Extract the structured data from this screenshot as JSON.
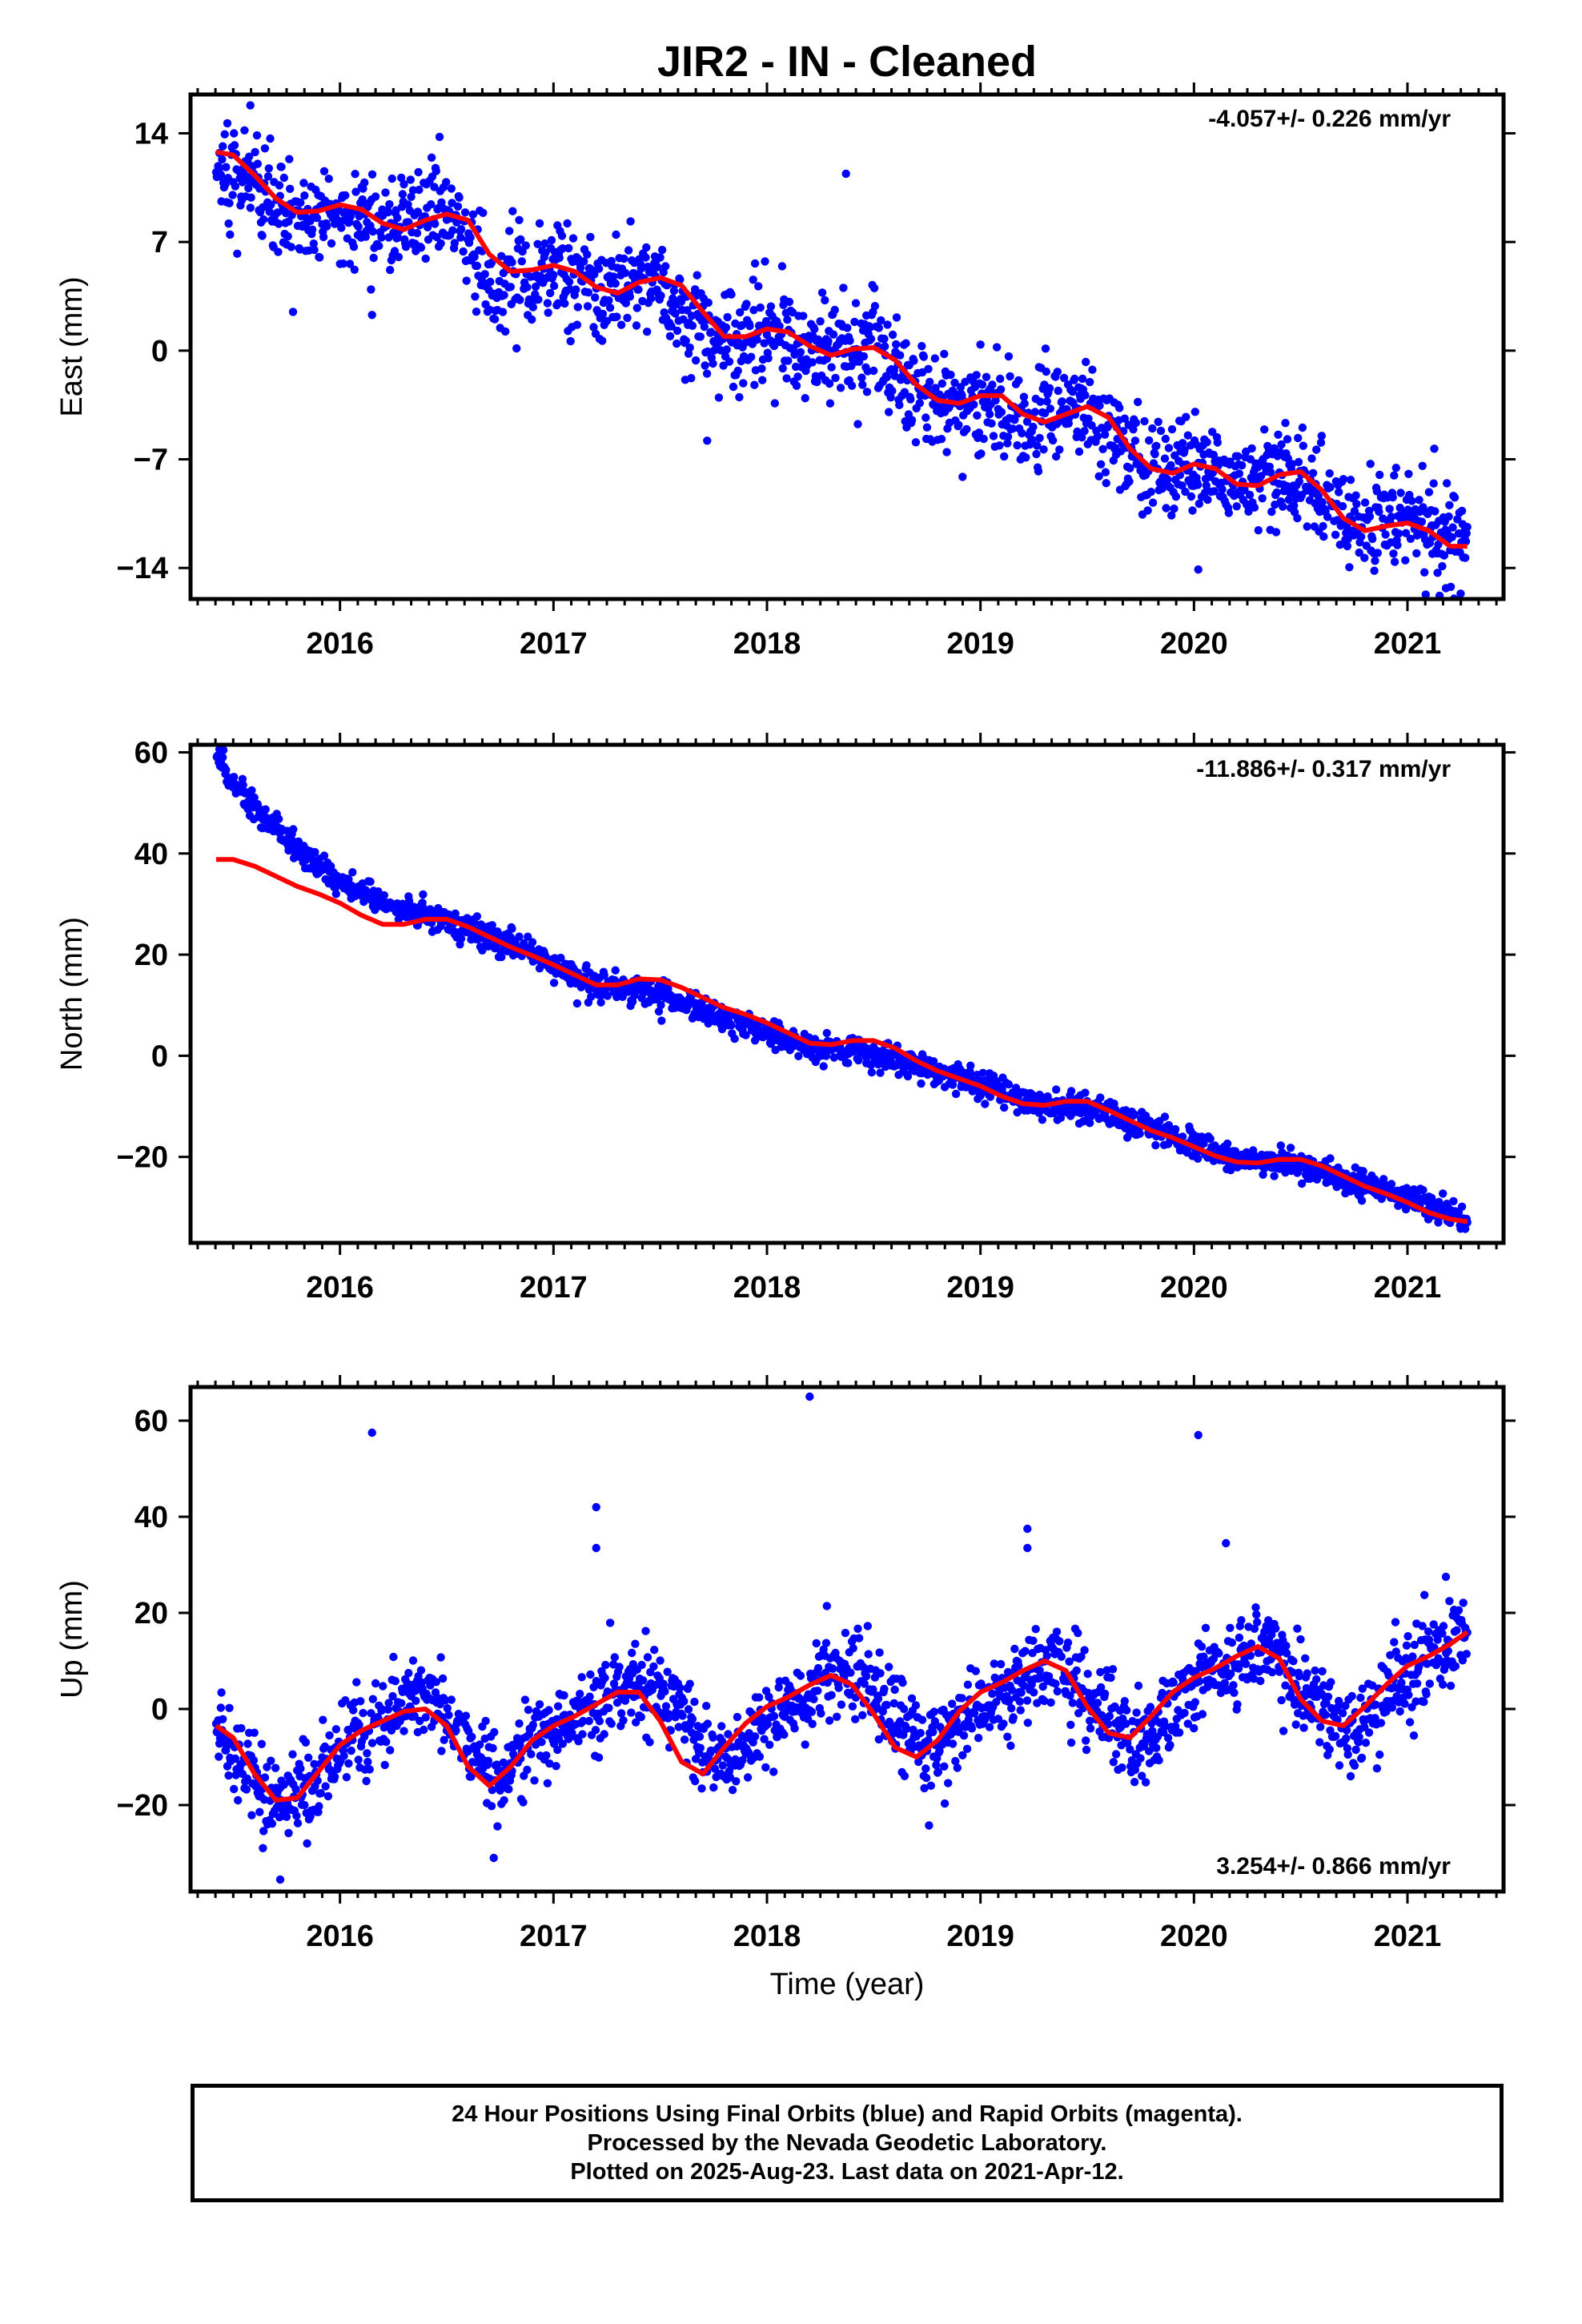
{
  "title": "JIR2  - IN - Cleaned",
  "caption": {
    "line1": "24 Hour Positions Using Final Orbits (blue) and Rapid Orbits (magenta).",
    "line2": "Processed by the Nevada Geodetic Laboratory.",
    "line3": "Plotted on 2025-Aug-23. Last data on 2021-Apr-12."
  },
  "colors": {
    "data": "#0000ff",
    "model": "#ff0000",
    "axes": "#000000"
  },
  "chart_data": [
    {
      "type": "scatter",
      "ylabel": "East (mm)",
      "xlabel": "",
      "xlim": [
        2015.3,
        2021.45
      ],
      "ylim": [
        -16.0,
        16.5
      ],
      "x_ticks": [
        2016,
        2017,
        2018,
        2019,
        2020,
        2021
      ],
      "x_tick_labels": [
        "2016",
        "2017",
        "2018",
        "2019",
        "2020",
        "2021"
      ],
      "y_ticks": [
        14,
        7,
        0,
        -7,
        -14
      ],
      "y_tick_labels": [
        "14",
        "7",
        "0",
        "−7",
        "−14"
      ],
      "rate": "-4.057+/- 0.226 mm/yr",
      "rate_position": "top-right",
      "series": [
        {
          "role": "data",
          "color": "#0000ff",
          "noise": 1.6,
          "trend_x": [
            2015.42,
            2015.55,
            2015.7,
            2015.85,
            2016.0,
            2016.15,
            2016.3,
            2016.45,
            2016.55,
            2016.7,
            2016.85,
            2017.0,
            2017.15,
            2017.3,
            2017.45,
            2017.6,
            2017.75,
            2017.9,
            2018.05,
            2018.2,
            2018.35,
            2018.5,
            2018.65,
            2018.8,
            2018.95,
            2019.1,
            2019.25,
            2019.4,
            2019.55,
            2019.7,
            2019.85,
            2020.0,
            2020.15,
            2020.3,
            2020.45,
            2020.6,
            2020.75,
            2020.9,
            2021.05,
            2021.2,
            2021.28
          ],
          "trend_y": [
            11.5,
            11.5,
            8.5,
            8.3,
            9.0,
            8.0,
            8.3,
            9.2,
            8.0,
            4.5,
            4.6,
            5.2,
            4.0,
            3.6,
            4.6,
            2.5,
            0.9,
            1.1,
            1.4,
            0.0,
            0.2,
            0.3,
            -2.0,
            -3.3,
            -3.0,
            -4.2,
            -4.4,
            -3.6,
            -4.3,
            -7.0,
            -7.6,
            -7.2,
            -8.2,
            -8.3,
            -8.0,
            -9.5,
            -11.0,
            -10.9,
            -10.8,
            -12.3,
            -12.0
          ]
        },
        {
          "role": "model",
          "color": "#ff0000",
          "x": [
            2015.42,
            2015.5,
            2015.6,
            2015.7,
            2015.8,
            2015.9,
            2016.0,
            2016.1,
            2016.2,
            2016.3,
            2016.4,
            2016.5,
            2016.6,
            2016.7,
            2016.8,
            2016.9,
            2017.0,
            2017.1,
            2017.2,
            2017.3,
            2017.4,
            2017.5,
            2017.6,
            2017.7,
            2017.8,
            2017.9,
            2018.0,
            2018.1,
            2018.2,
            2018.3,
            2018.4,
            2018.5,
            2018.6,
            2018.7,
            2018.8,
            2018.9,
            2019.0,
            2019.1,
            2019.2,
            2019.3,
            2019.4,
            2019.5,
            2019.6,
            2019.7,
            2019.8,
            2019.9,
            2020.0,
            2020.1,
            2020.2,
            2020.3,
            2020.4,
            2020.5,
            2020.6,
            2020.7,
            2020.8,
            2020.9,
            2021.0,
            2021.1,
            2021.2,
            2021.28
          ],
          "y": [
            12.8,
            12.6,
            11.3,
            9.8,
            8.9,
            9.0,
            9.4,
            9.1,
            8.2,
            7.8,
            8.4,
            8.8,
            8.4,
            6.2,
            5.1,
            5.2,
            5.5,
            5.1,
            4.1,
            3.7,
            4.4,
            4.7,
            4.2,
            2.5,
            0.9,
            0.9,
            1.4,
            1.2,
            0.3,
            -0.3,
            0.1,
            0.2,
            -0.6,
            -2.2,
            -3.2,
            -3.4,
            -2.9,
            -2.9,
            -4.1,
            -4.6,
            -4.1,
            -3.6,
            -4.3,
            -6.3,
            -7.6,
            -7.9,
            -7.3,
            -7.6,
            -8.6,
            -8.7,
            -8.0,
            -7.8,
            -9.0,
            -10.8,
            -11.6,
            -11.3,
            -11.1,
            -11.6,
            -12.6,
            -12.6
          ]
        }
      ],
      "outliers": [
        {
          "x": 2015.58,
          "y": 15.8
        },
        {
          "x": 2018.37,
          "y": 11.4
        },
        {
          "x": 2017.72,
          "y": -5.8
        },
        {
          "x": 2020.02,
          "y": -14.1
        },
        {
          "x": 2021.18,
          "y": -15.3
        },
        {
          "x": 2016.15,
          "y": 2.3
        },
        {
          "x": 2015.78,
          "y": 2.5
        }
      ]
    },
    {
      "type": "scatter",
      "ylabel": "North (mm)",
      "xlabel": "",
      "xlim": [
        2015.3,
        2021.45
      ],
      "ylim": [
        -37.0,
        61.5
      ],
      "x_ticks": [
        2016,
        2017,
        2018,
        2019,
        2020,
        2021
      ],
      "x_tick_labels": [
        "2016",
        "2017",
        "2018",
        "2019",
        "2020",
        "2021"
      ],
      "y_ticks": [
        60,
        40,
        20,
        0,
        -20
      ],
      "y_tick_labels": [
        "60",
        "40",
        "20",
        "0",
        "−20"
      ],
      "rate": "-11.886+/- 0.317 mm/yr",
      "rate_position": "top-right",
      "series": [
        {
          "role": "data",
          "color": "#0000ff",
          "noise": 1.3,
          "trend_x": [
            2015.42,
            2015.6,
            2015.8,
            2016.0,
            2016.2,
            2016.4,
            2016.6,
            2016.8,
            2017.0,
            2017.2,
            2017.4,
            2017.6,
            2017.8,
            2018.0,
            2018.2,
            2018.4,
            2018.6,
            2018.8,
            2019.0,
            2019.2,
            2019.4,
            2019.6,
            2019.8,
            2020.0,
            2020.2,
            2020.4,
            2020.6,
            2020.8,
            2021.0,
            2021.2,
            2021.28
          ],
          "trend_y": [
            58.5,
            49.0,
            41.0,
            34.5,
            30.0,
            28.0,
            25.0,
            22.0,
            18.0,
            13.5,
            13.0,
            11.0,
            7.5,
            4.5,
            1.5,
            1.0,
            -1.0,
            -3.5,
            -5.5,
            -9.0,
            -10.0,
            -11.5,
            -14.5,
            -17.5,
            -20.5,
            -21.0,
            -22.5,
            -25.5,
            -28.0,
            -31.0,
            -32.5
          ]
        },
        {
          "role": "model",
          "color": "#ff0000",
          "x": [
            2015.42,
            2015.5,
            2015.6,
            2015.7,
            2015.8,
            2015.9,
            2016.0,
            2016.1,
            2016.2,
            2016.3,
            2016.4,
            2016.5,
            2016.6,
            2016.7,
            2016.8,
            2016.9,
            2017.0,
            2017.1,
            2017.2,
            2017.3,
            2017.4,
            2017.5,
            2017.6,
            2017.7,
            2017.8,
            2017.9,
            2018.0,
            2018.1,
            2018.2,
            2018.3,
            2018.4,
            2018.5,
            2018.6,
            2018.7,
            2018.8,
            2018.9,
            2019.0,
            2019.1,
            2019.2,
            2019.3,
            2019.4,
            2019.5,
            2019.6,
            2019.7,
            2019.8,
            2019.9,
            2020.0,
            2020.1,
            2020.2,
            2020.3,
            2020.4,
            2020.5,
            2020.6,
            2020.7,
            2020.8,
            2020.9,
            2021.0,
            2021.1,
            2021.2,
            2021.28
          ],
          "y": [
            38.8,
            38.8,
            37.5,
            35.5,
            33.5,
            32.0,
            30.2,
            27.8,
            26.0,
            26.0,
            27.0,
            27.0,
            25.5,
            23.5,
            21.5,
            19.8,
            18.0,
            16.0,
            14.0,
            14.0,
            15.2,
            15.0,
            13.5,
            11.5,
            9.5,
            8.2,
            6.5,
            4.5,
            2.5,
            2.2,
            3.0,
            3.0,
            1.5,
            -1.0,
            -3.0,
            -4.5,
            -6.0,
            -8.0,
            -9.5,
            -9.8,
            -9.0,
            -9.0,
            -10.8,
            -12.8,
            -14.8,
            -16.2,
            -18.0,
            -19.8,
            -21.0,
            -21.2,
            -20.5,
            -20.5,
            -21.8,
            -23.8,
            -25.8,
            -27.3,
            -29.0,
            -31.0,
            -32.3,
            -32.8
          ]
        }
      ],
      "outliers": []
    },
    {
      "type": "scatter",
      "ylabel": "Up (mm)",
      "xlabel": "Time (year)",
      "xlim": [
        2015.3,
        2021.45
      ],
      "ylim": [
        -38.0,
        67.0
      ],
      "x_ticks": [
        2016,
        2017,
        2018,
        2019,
        2020,
        2021
      ],
      "x_tick_labels": [
        "2016",
        "2017",
        "2018",
        "2019",
        "2020",
        "2021"
      ],
      "y_ticks": [
        60,
        40,
        20,
        0,
        -20
      ],
      "y_tick_labels": [
        "60",
        "40",
        "20",
        "0",
        "−20"
      ],
      "rate": "3.254+/- 0.866 mm/yr",
      "rate_position": "bottom-right",
      "series": [
        {
          "role": "data",
          "color": "#0000ff",
          "noise": 4.5,
          "trend_x": [
            2015.42,
            2015.55,
            2015.7,
            2015.85,
            2016.0,
            2016.2,
            2016.4,
            2016.55,
            2016.75,
            2016.9,
            2017.1,
            2017.35,
            2017.55,
            2017.75,
            2017.95,
            2018.15,
            2018.35,
            2018.55,
            2018.75,
            2018.95,
            2019.15,
            2019.35,
            2019.55,
            2019.75,
            2019.95,
            2020.15,
            2020.35,
            2020.55,
            2020.75,
            2020.95,
            2021.15,
            2021.28
          ],
          "trend_y": [
            -5,
            -12,
            -20,
            -17,
            -8,
            -4,
            3,
            -4,
            -14,
            -7,
            -1,
            6,
            2,
            -12,
            -5,
            2,
            8,
            0,
            -9,
            0,
            4,
            10,
            0,
            -8,
            4,
            9,
            13,
            2,
            -6,
            6,
            12,
            17
          ]
        },
        {
          "role": "model",
          "color": "#ff0000",
          "x": [
            2015.42,
            2015.5,
            2015.6,
            2015.7,
            2015.8,
            2015.9,
            2016.0,
            2016.1,
            2016.2,
            2016.3,
            2016.4,
            2016.5,
            2016.6,
            2016.7,
            2016.8,
            2016.9,
            2017.0,
            2017.1,
            2017.2,
            2017.3,
            2017.4,
            2017.5,
            2017.6,
            2017.7,
            2017.8,
            2017.9,
            2018.0,
            2018.1,
            2018.2,
            2018.3,
            2018.4,
            2018.5,
            2018.6,
            2018.7,
            2018.8,
            2018.9,
            2019.0,
            2019.1,
            2019.2,
            2019.3,
            2019.4,
            2019.5,
            2019.6,
            2019.7,
            2019.8,
            2019.9,
            2020.0,
            2020.1,
            2020.2,
            2020.3,
            2020.4,
            2020.5,
            2020.6,
            2020.7,
            2020.8,
            2020.9,
            2021.0,
            2021.1,
            2021.2,
            2021.28
          ],
          "y": [
            -3.5,
            -6.0,
            -13.5,
            -19.0,
            -18.5,
            -13.0,
            -7.5,
            -4.5,
            -2.5,
            -0.5,
            0.0,
            -3.5,
            -12.0,
            -16.0,
            -12.0,
            -6.5,
            -3.5,
            -1.5,
            1.0,
            3.5,
            3.5,
            -2.5,
            -11.0,
            -13.5,
            -8.0,
            -3.0,
            0.5,
            2.5,
            5.0,
            7.0,
            5.0,
            -1.0,
            -8.0,
            -10.0,
            -6.5,
            -0.5,
            3.5,
            5.5,
            8.0,
            10.0,
            8.0,
            0.5,
            -5.0,
            -6.0,
            -1.5,
            3.5,
            6.5,
            8.5,
            11.0,
            13.0,
            10.5,
            2.0,
            -2.5,
            -3.5,
            0.5,
            5.0,
            9.0,
            11.0,
            13.5,
            16.0
          ]
        }
      ],
      "outliers": [
        {
          "x": 2016.15,
          "y": 57.5
        },
        {
          "x": 2017.2,
          "y": 42.0
        },
        {
          "x": 2017.2,
          "y": 33.5
        },
        {
          "x": 2018.2,
          "y": 65.0
        },
        {
          "x": 2019.22,
          "y": 37.5
        },
        {
          "x": 2019.22,
          "y": 33.5
        },
        {
          "x": 2020.02,
          "y": 57.0
        },
        {
          "x": 2020.15,
          "y": 34.5
        },
        {
          "x": 2016.72,
          "y": -31.0
        },
        {
          "x": 2015.72,
          "y": -35.5
        },
        {
          "x": 2021.18,
          "y": 27.5
        }
      ]
    }
  ]
}
